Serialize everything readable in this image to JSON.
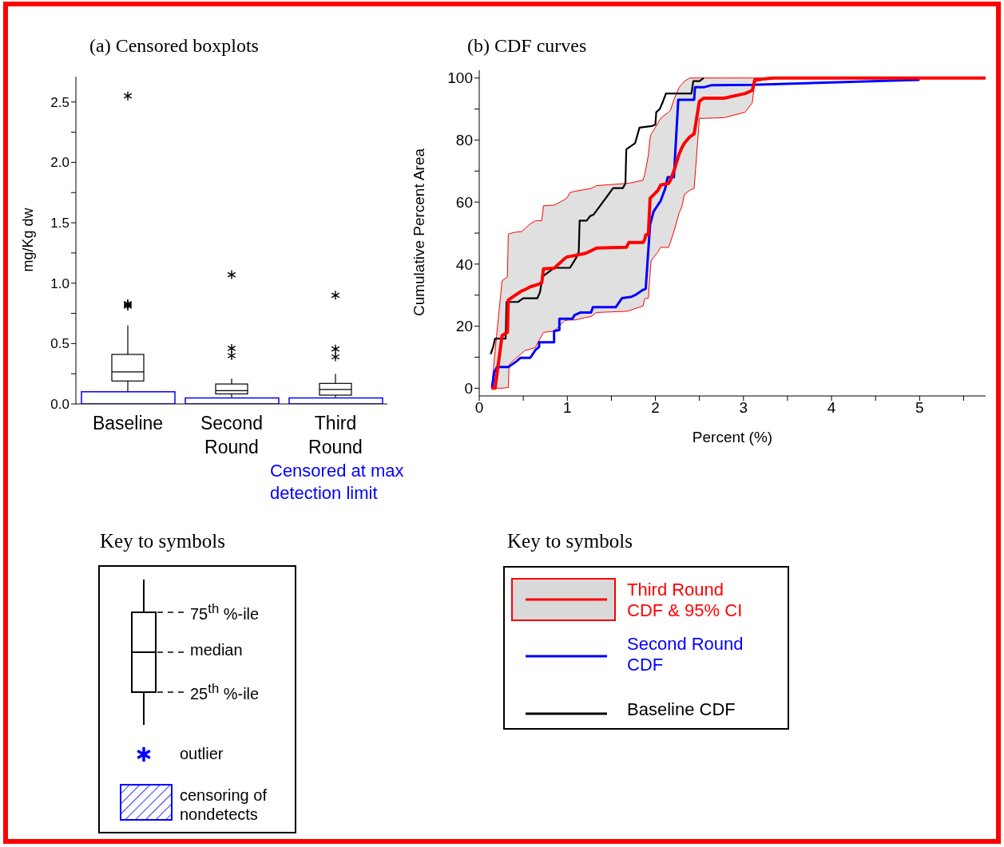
{
  "chart_data": [
    {
      "type": "box",
      "title": "(a) Censored boxplots",
      "ylabel": "mg/Kg dw",
      "categories": [
        "Baseline",
        "Second Round",
        "Third Round"
      ],
      "boxes": [
        {
          "low": 0.1,
          "q1": 0.19,
          "median": 0.265,
          "q3": 0.41,
          "high": 0.65,
          "outliers": [
            0.81,
            0.82,
            0.83,
            2.55
          ]
        },
        {
          "low": 0.055,
          "q1": 0.083,
          "median": 0.11,
          "q3": 0.165,
          "high": 0.21,
          "outliers": [
            0.4,
            0.46,
            1.07
          ]
        },
        {
          "low": 0.055,
          "q1": 0.073,
          "median": 0.12,
          "q3": 0.17,
          "high": 0.25,
          "outliers": [
            0.39,
            0.455,
            0.9
          ]
        }
      ],
      "series": [
        {
          "type": "bar",
          "name": "censoring of nondetects",
          "color": "#0000ff",
          "values": [
            0.1,
            0.05,
            0.05
          ]
        }
      ],
      "ylim": [
        0,
        2.71
      ],
      "yticks": [
        {
          "value": 0,
          "label": "0.0"
        },
        {
          "value": 0.25,
          "label": null
        },
        0.5,
        {
          "value": 0.75,
          "label": null
        },
        {
          "value": 1,
          "label": "1.0"
        },
        {
          "value": 1.25,
          "label": null
        },
        1.5,
        {
          "value": 1.75,
          "label": null
        },
        {
          "value": 2,
          "label": "2.0"
        },
        {
          "value": 2.25,
          "label": null
        },
        2.5
      ],
      "legend": "bottom",
      "legend_title": "Key to symbols",
      "annotations": [
        "Censored at max detection limit",
        "75$^{th}$ %-ile",
        "median",
        "25$^{th}$ %-ile",
        "outlier"
      ]
    },
    {
      "type": "line",
      "title": "(b) CDF curves",
      "xlabel": "Percent (%)",
      "ylabel": "Cumulative Percent Area",
      "series": [
        {
          "name": "Third Round CDF & 95% CI",
          "color": "#ff0000",
          "x": [
            0.14,
            0.18,
            0.26,
            0.32,
            0.33,
            0.34,
            0.41,
            0.48,
            0.52,
            0.58,
            0.64,
            0.67,
            0.71,
            0.73,
            0.85,
            0.97,
            1.0,
            1.03,
            1.09,
            1.21,
            1.27,
            1.33,
            1.67,
            1.7,
            1.86,
            1.88,
            1.89,
            1.92,
            1.94,
            1.95,
            2.03,
            2.06,
            2.15,
            2.17,
            2.21,
            2.27,
            2.3,
            2.33,
            2.39,
            2.44,
            2.5,
            2.55,
            2.78,
            3.02,
            3.1,
            3.13,
            3.35,
            5.75
          ],
          "values": [
            0,
            0,
            17,
            18,
            28.5,
            28.6,
            30,
            31.3,
            31.8,
            32.7,
            33.2,
            33.5,
            34,
            38.5,
            38.7,
            41.8,
            42.4,
            42.5,
            42.8,
            43.5,
            44.3,
            45.2,
            45.4,
            47,
            47,
            48,
            49.4,
            49.5,
            61.2,
            61.5,
            63.8,
            65.5,
            66,
            67,
            70,
            75.5,
            77.5,
            79,
            81,
            82,
            92.5,
            93.5,
            93.5,
            95,
            96,
            99.5,
            100,
            100
          ],
          "lower": [
            0,
            0,
            0,
            0.2,
            0.2,
            7.7,
            9.5,
            11.2,
            12.2,
            12.6,
            13.2,
            15,
            17,
            18,
            18.4,
            21.8,
            21.9,
            22,
            22,
            22.8,
            23.1,
            24.4,
            24.8,
            25,
            26.5,
            29,
            29,
            29,
            37,
            41,
            44,
            45.4,
            45.4,
            47,
            50.5,
            56.5,
            58.5,
            62.5,
            63.8,
            64.4,
            87,
            87,
            87.2,
            89,
            92,
            98.8,
            100,
            100
          ],
          "upper": [
            0,
            12,
            34.7,
            35.8,
            49.7,
            49.8,
            50.3,
            50.5,
            51.5,
            53,
            54,
            54,
            54,
            58.8,
            59,
            60.8,
            61.5,
            63.1,
            63.5,
            64.1,
            64.4,
            65.3,
            66,
            66.1,
            67,
            69,
            70.5,
            75,
            80.5,
            81.8,
            85.5,
            87,
            89,
            89.5,
            93,
            97,
            98,
            99,
            100,
            100,
            100,
            100,
            100,
            100,
            100,
            100,
            100,
            100
          ]
        },
        {
          "name": "Second Round CDF",
          "color": "#0000ff",
          "x": [
            0.145,
            0.17,
            0.2,
            0.33,
            0.42,
            0.47,
            0.58,
            0.64,
            0.68,
            0.68,
            0.85,
            0.85,
            0.91,
            0.91,
            1.06,
            1.08,
            1.15,
            1.27,
            1.29,
            1.55,
            1.62,
            1.73,
            1.77,
            1.86,
            1.89,
            1.94,
            1.98,
            2.06,
            2.11,
            2.14,
            2.21,
            2.26,
            2.44,
            2.45,
            2.55,
            2.64,
            3.1,
            4.0,
            5.0
          ],
          "values": [
            0,
            5,
            6.8,
            6.8,
            8.6,
            9.8,
            9.8,
            12.4,
            13.3,
            14.8,
            14.8,
            18.4,
            18.8,
            22.4,
            22.4,
            23.5,
            24.4,
            24.4,
            26.1,
            26.1,
            29,
            29.5,
            30,
            31.7,
            32,
            52.7,
            57,
            60.4,
            64.2,
            68,
            68,
            93,
            93,
            97,
            97,
            97.7,
            97.8,
            98.6,
            99.4
          ]
        },
        {
          "name": "Baseline CDF",
          "color": "#000000",
          "x": [
            0.13,
            0.16,
            0.18,
            0.3,
            0.31,
            0.44,
            0.5,
            0.66,
            0.69,
            0.72,
            0.85,
            1.03,
            1.1,
            1.13,
            1.14,
            1.22,
            1.26,
            1.3,
            1.52,
            1.63,
            1.66,
            1.67,
            1.72,
            1.77,
            1.82,
            1.96,
            2.0,
            2.01,
            2.05,
            2.08,
            2.12,
            2.41,
            2.43,
            2.5,
            2.55
          ],
          "values": [
            11,
            13.5,
            16,
            16,
            27.8,
            27.8,
            29,
            29,
            31,
            36,
            38.8,
            38.8,
            42,
            44,
            54,
            54,
            55.5,
            56,
            64.5,
            64.5,
            66,
            77,
            78,
            79,
            84,
            84.5,
            85,
            89,
            90,
            92,
            95,
            95,
            99,
            99,
            100
          ]
        }
      ],
      "xlim": [
        0,
        5.75
      ],
      "xticks": [
        0,
        {
          "value": 0.5,
          "label": null
        },
        1,
        {
          "value": 1.5,
          "label": null
        },
        2,
        {
          "value": 2.5,
          "label": null
        },
        3,
        {
          "value": 3.5,
          "label": null
        },
        4,
        {
          "value": 4.5,
          "label": null
        },
        5,
        {
          "value": 5.5,
          "label": null
        }
      ],
      "ylim": [
        -2.5,
        102.5
      ],
      "yticks": [
        0,
        {
          "value": 10,
          "label": null
        },
        20,
        {
          "value": 30,
          "label": null
        },
        40,
        {
          "value": 50,
          "label": null
        },
        60,
        {
          "value": 70,
          "label": null
        },
        80,
        {
          "value": 90,
          "label": null
        },
        100
      ],
      "legend": "bottom",
      "legend_title": "Key to symbols"
    }
  ]
}
